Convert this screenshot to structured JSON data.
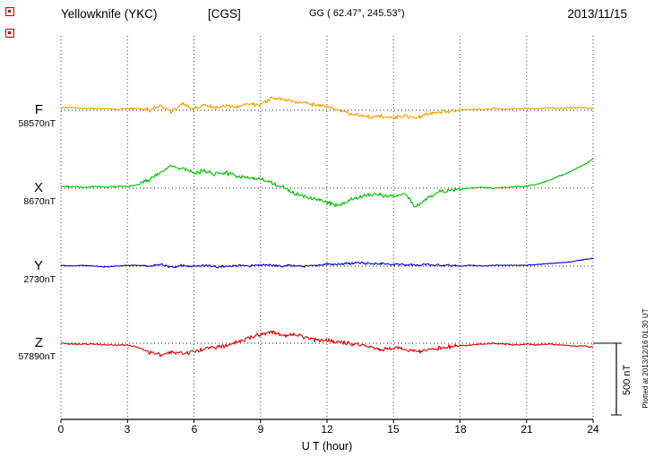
{
  "header": {
    "station_title": "Yellowknife (YKC)",
    "system_label": "[CGS]",
    "gg_coordinates": "GG ( 62.47°, 245.53°)",
    "date": "2013/11/15"
  },
  "axis": {
    "label": "U T (hour)",
    "ticks": [
      "0",
      "3",
      "6",
      "9",
      "12",
      "15",
      "18",
      "21",
      "24"
    ],
    "range_hours": [
      0,
      24
    ],
    "gridline_interval_hours": 3
  },
  "scale_bar": {
    "label": "500 nT",
    "value_nT": 500
  },
  "plot_note": "Plotted at 2013/12/16 01:30 UT",
  "icons": {
    "top_left_markers": "red-marker-icon"
  },
  "chart_data": {
    "type": "line",
    "title": "Yellowknife (YKC) magnetogram, CGS, 2013/11/15",
    "xlabel": "U T (hour)",
    "x_range": [
      0,
      24
    ],
    "sample_interval_hours": 0.5,
    "grid": "dotted vertical every 3 h; dotted horizontal baseline per component",
    "legend_position": "left margin, one colored label per trace",
    "scale": "500 nT reference bar at right",
    "series": [
      {
        "name": "F",
        "baseline_label": "58570nT",
        "baseline_nT": 58570,
        "color": "#f0a000",
        "noise_nT": 16,
        "offsets_nT": [
          18,
          18,
          12,
          12,
          12,
          6,
          12,
          12,
          0,
          36,
          -12,
          48,
          12,
          36,
          12,
          30,
          24,
          48,
          36,
          85,
          73,
          61,
          48,
          36,
          24,
          0,
          -24,
          -37,
          -49,
          -43,
          -49,
          -37,
          -55,
          -30,
          -12,
          -6,
          0,
          6,
          6,
          12,
          6,
          12,
          12,
          12,
          18,
          12,
          18,
          18,
          12
        ]
      },
      {
        "name": "X",
        "baseline_label": "8670nT",
        "baseline_nT": 8670,
        "color": "#00c000",
        "noise_nT": 18,
        "offsets_nT": [
          12,
          12,
          6,
          12,
          6,
          12,
          12,
          24,
          61,
          110,
          159,
          134,
          110,
          122,
          98,
          104,
          85,
          73,
          61,
          37,
          12,
          -37,
          -61,
          -79,
          -98,
          -122,
          -85,
          -61,
          -43,
          -49,
          -61,
          -37,
          -134,
          -73,
          -24,
          -12,
          -6,
          0,
          6,
          0,
          6,
          12,
          12,
          30,
          55,
          85,
          116,
          159,
          201
        ]
      },
      {
        "name": "Y",
        "baseline_label": "2730nT",
        "baseline_nT": 2730,
        "color": "#0000e0",
        "noise_nT": 10,
        "offsets_nT": [
          6,
          0,
          6,
          0,
          -6,
          0,
          6,
          6,
          0,
          12,
          -6,
          6,
          0,
          6,
          -6,
          0,
          6,
          0,
          12,
          6,
          0,
          6,
          0,
          6,
          12,
          12,
          18,
          24,
          18,
          18,
          12,
          12,
          6,
          12,
          6,
          6,
          0,
          6,
          0,
          6,
          6,
          6,
          6,
          12,
          18,
          24,
          30,
          43,
          55
        ]
      },
      {
        "name": "Z",
        "baseline_label": "57890nT",
        "baseline_nT": 57890,
        "color": "#e60000",
        "noise_nT": 18,
        "offsets_nT": [
          0,
          -6,
          -6,
          -6,
          -12,
          -12,
          -12,
          -30,
          -61,
          -79,
          -61,
          -73,
          -55,
          -43,
          -30,
          -18,
          12,
          37,
          61,
          79,
          49,
          67,
          37,
          24,
          18,
          12,
          0,
          -12,
          -30,
          -49,
          -30,
          -43,
          -55,
          -49,
          -37,
          -24,
          -18,
          -12,
          -6,
          0,
          -6,
          -12,
          -6,
          -12,
          -6,
          -12,
          -18,
          -18,
          -30
        ]
      }
    ]
  }
}
